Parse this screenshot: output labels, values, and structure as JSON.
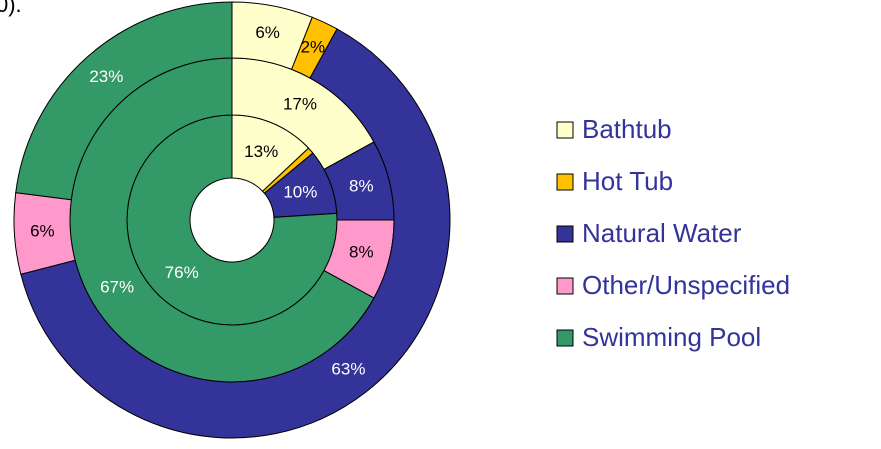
{
  "chart_data": {
    "type": "donut",
    "title": "0).",
    "categories": [
      "Bathtub",
      "Hot Tub",
      "Natural Water",
      "Other/Unspecified",
      "Swimming Pool"
    ],
    "colors": [
      "#ffffcc",
      "#ffc000",
      "#333399",
      "#ff99cc",
      "#339966"
    ],
    "series": [
      {
        "values": [
          13,
          1,
          10,
          0,
          76
        ],
        "value_labels": [
          "13%",
          null,
          "10%",
          null,
          "76%"
        ]
      },
      {
        "values": [
          17,
          0,
          8,
          8,
          67
        ],
        "value_labels": [
          "17%",
          null,
          "8%",
          "8%",
          "67%"
        ]
      },
      {
        "values": [
          6,
          2,
          63,
          6,
          23
        ],
        "value_labels": [
          "6%",
          "2%",
          "63%",
          "6%",
          "23%"
        ]
      }
    ]
  }
}
